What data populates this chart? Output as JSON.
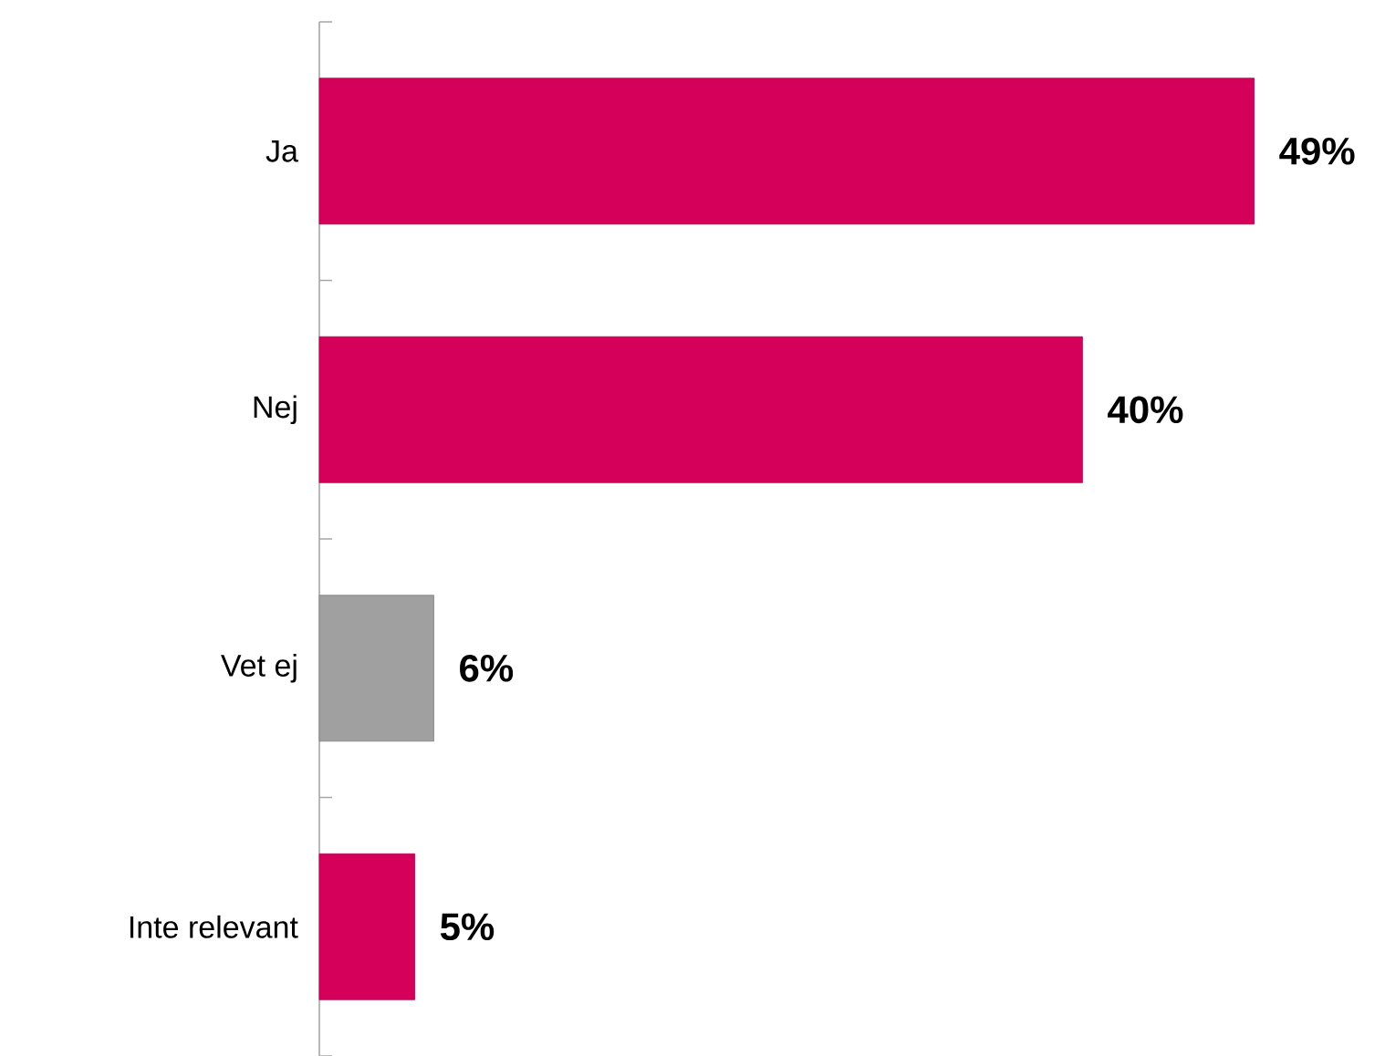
{
  "chart_data": {
    "type": "bar",
    "orientation": "horizontal",
    "categories": [
      "Ja",
      "Nej",
      "Vet ej",
      "Inte relevant"
    ],
    "values": [
      49,
      40,
      6,
      5
    ],
    "colors": [
      "#d5005a",
      "#d5005a",
      "#a0a0a0",
      "#d5005a"
    ],
    "value_labels": [
      "49%",
      "40%",
      "6%",
      "5%"
    ]
  }
}
